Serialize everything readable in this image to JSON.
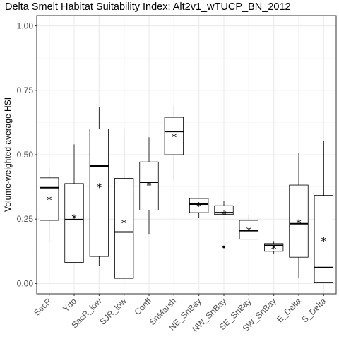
{
  "chart_data": {
    "type": "boxplot",
    "title": "Delta Smelt Habitat Suitability Index: Alt2v1_wTUCP_BN_2012",
    "xlabel": "",
    "ylabel": "Volume-weighted average HSI",
    "ylim": [
      -0.04,
      1.04
    ],
    "yticks": [
      0.0,
      0.25,
      0.5,
      0.75,
      1.0
    ],
    "ytick_labels": [
      "0.00",
      "0.25",
      "0.50",
      "0.75",
      "1.00"
    ],
    "grid": true,
    "mean_marker": "*",
    "categories": [
      "SacR",
      "Ydo",
      "SacR_low",
      "SJR_low",
      "Confl",
      "SnMarsh",
      "NE_SnBay",
      "NW_SnBay",
      "SE_SnBay",
      "SW_SnBay",
      "E_Delta",
      "S_Delta"
    ],
    "boxes": [
      {
        "category": "SacR",
        "whisker_low": 0.16,
        "q1": 0.245,
        "median": 0.372,
        "q3": 0.41,
        "whisker_high": 0.445,
        "mean": 0.328,
        "outliers": []
      },
      {
        "category": "Ydo",
        "whisker_low": 0.082,
        "q1": 0.082,
        "median": 0.248,
        "q3": 0.388,
        "whisker_high": 0.54,
        "mean": 0.257,
        "outliers": []
      },
      {
        "category": "SacR_low",
        "whisker_low": 0.068,
        "q1": 0.105,
        "median": 0.456,
        "q3": 0.6,
        "whisker_high": 0.685,
        "mean": 0.378,
        "outliers": []
      },
      {
        "category": "SJR_low",
        "whisker_low": 0.02,
        "q1": 0.02,
        "median": 0.2,
        "q3": 0.408,
        "whisker_high": 0.6,
        "mean": 0.238,
        "outliers": []
      },
      {
        "category": "Confl",
        "whisker_low": 0.19,
        "q1": 0.285,
        "median": 0.393,
        "q3": 0.472,
        "whisker_high": 0.568,
        "mean": 0.385,
        "outliers": []
      },
      {
        "category": "SnMarsh",
        "whisker_low": 0.4,
        "q1": 0.5,
        "median": 0.59,
        "q3": 0.645,
        "whisker_high": 0.69,
        "mean": 0.573,
        "outliers": []
      },
      {
        "category": "NE_SnBay",
        "whisker_low": 0.255,
        "q1": 0.275,
        "median": 0.308,
        "q3": 0.33,
        "whisker_high": 0.33,
        "mean": 0.306,
        "outliers": []
      },
      {
        "category": "NW_SnBay",
        "whisker_low": 0.268,
        "q1": 0.268,
        "median": 0.275,
        "q3": 0.302,
        "whisker_high": 0.32,
        "mean": 0.272,
        "outliers": [
          0.142
        ]
      },
      {
        "category": "SE_SnBay",
        "whisker_low": 0.172,
        "q1": 0.172,
        "median": 0.205,
        "q3": 0.245,
        "whisker_high": 0.265,
        "mean": 0.21,
        "outliers": []
      },
      {
        "category": "SW_SnBay",
        "whisker_low": 0.115,
        "q1": 0.125,
        "median": 0.148,
        "q3": 0.155,
        "whisker_high": 0.165,
        "mean": 0.14,
        "outliers": []
      },
      {
        "category": "E_Delta",
        "whisker_low": 0.022,
        "q1": 0.102,
        "median": 0.232,
        "q3": 0.382,
        "whisker_high": 0.508,
        "mean": 0.238,
        "outliers": []
      },
      {
        "category": "S_Delta",
        "whisker_low": 0.005,
        "q1": 0.005,
        "median": 0.062,
        "q3": 0.342,
        "whisker_high": 0.552,
        "mean": 0.17,
        "outliers": []
      }
    ],
    "colors": {
      "panel_background": "#ffffff",
      "panel_border": "#333333",
      "grid_major": "#ebebeb",
      "grid_minor": "#f5f5f5",
      "box_stroke": "#000000",
      "tick_label": "#4d4d4d"
    }
  }
}
